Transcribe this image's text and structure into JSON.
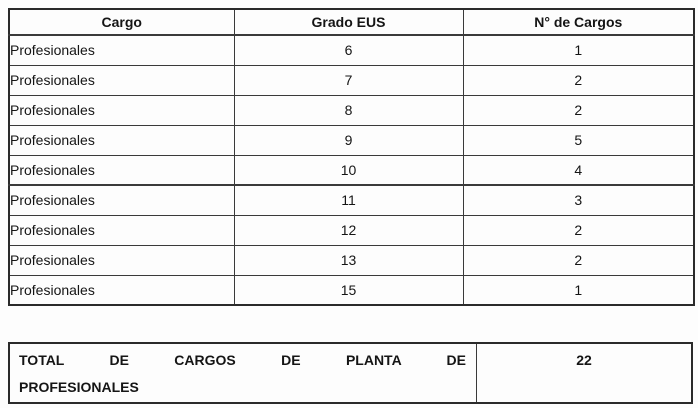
{
  "table": {
    "columns": [
      "Cargo",
      "Grado EUS",
      "N° de Cargos"
    ],
    "rows": [
      {
        "cargo": "Profesionales",
        "grado": "6",
        "num": "1"
      },
      {
        "cargo": "Profesionales",
        "grado": "7",
        "num": "2"
      },
      {
        "cargo": "Profesionales",
        "grado": "8",
        "num": "2"
      },
      {
        "cargo": "Profesionales",
        "grado": "9",
        "num": "5"
      },
      {
        "cargo": "Profesionales",
        "grado": "10",
        "num": "4"
      },
      {
        "cargo": "Profesionales",
        "grado": "11",
        "num": "3"
      },
      {
        "cargo": "Profesionales",
        "grado": "12",
        "num": "2"
      },
      {
        "cargo": "Profesionales",
        "grado": "13",
        "num": "2"
      },
      {
        "cargo": "Profesionales",
        "grado": "15",
        "num": "1"
      }
    ]
  },
  "total": {
    "label_line1": "TOTAL DE CARGOS DE PLANTA DE",
    "label_line2": "PROFESIONALES",
    "value": "22"
  },
  "colors": {
    "border": "#2b2b2b",
    "text": "#151515",
    "background": "#fdfdfd"
  }
}
